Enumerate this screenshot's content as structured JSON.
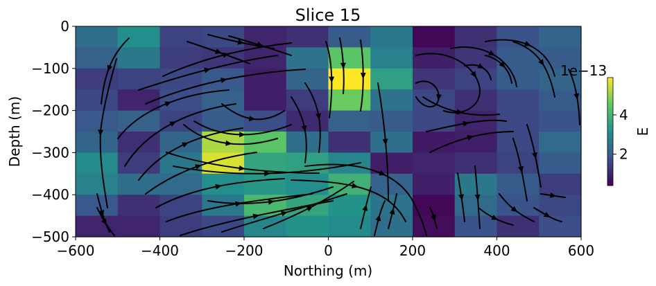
{
  "chart_data": {
    "type": "heatmap",
    "title": "Slice 15",
    "xlabel": "Northing (m)",
    "ylabel": "Depth (m)",
    "xlim": [
      -600,
      600
    ],
    "ylim": [
      -500,
      0
    ],
    "xticks": [
      -600,
      -400,
      -200,
      0,
      200,
      400,
      600
    ],
    "xtick_labels": [
      "−600",
      "−400",
      "−200",
      "0",
      "200",
      "400",
      "600"
    ],
    "yticks": [
      0,
      -100,
      -200,
      -300,
      -400,
      -500
    ],
    "ytick_labels": [
      "0",
      "−100",
      "−200",
      "−300",
      "−400",
      "−500"
    ],
    "x_edges": [
      -600,
      -500,
      -400,
      -300,
      -200,
      -100,
      0,
      100,
      200,
      300,
      400,
      500,
      600
    ],
    "y_edges": [
      0,
      -50,
      -100,
      -150,
      -200,
      -250,
      -300,
      -350,
      -400,
      -450,
      -500
    ],
    "values_e13": [
      [
        2.4,
        3.1,
        1.5,
        1.6,
        1.0,
        1.2,
        2.0,
        2.6,
        0.5,
        1.2,
        1.8,
        2.2
      ],
      [
        2.1,
        2.6,
        1.4,
        1.3,
        1.0,
        2.5,
        4.4,
        2.8,
        0.9,
        1.3,
        2.0,
        2.0
      ],
      [
        1.4,
        1.5,
        1.6,
        1.9,
        0.9,
        2.2,
        5.9,
        3.5,
        1.3,
        1.5,
        2.0,
        2.2
      ],
      [
        1.6,
        1.0,
        1.7,
        2.1,
        0.9,
        1.4,
        4.6,
        2.5,
        1.6,
        1.2,
        1.6,
        2.0
      ],
      [
        1.9,
        2.1,
        1.5,
        2.0,
        1.7,
        1.1,
        2.1,
        2.0,
        1.6,
        1.0,
        1.6,
        1.8
      ],
      [
        2.2,
        1.2,
        2.2,
        5.2,
        4.4,
        2.4,
        1.2,
        2.4,
        0.8,
        0.9,
        1.6,
        2.3
      ],
      [
        3.0,
        1.4,
        2.6,
        5.6,
        3.6,
        3.5,
        2.9,
        0.9,
        1.0,
        1.2,
        1.5,
        2.0
      ],
      [
        2.8,
        2.4,
        2.3,
        3.1,
        3.3,
        3.1,
        3.9,
        2.1,
        0.9,
        2.6,
        2.0,
        1.4
      ],
      [
        1.9,
        1.2,
        1.5,
        2.6,
        4.1,
        3.6,
        3.2,
        2.5,
        0.5,
        2.3,
        1.8,
        1.6
      ],
      [
        1.0,
        1.0,
        1.4,
        1.6,
        2.9,
        3.2,
        3.0,
        2.4,
        0.6,
        1.8,
        1.2,
        1.7
      ]
    ],
    "colormap": "viridis",
    "colorbar": {
      "label": "E",
      "offset_label": "1e−13",
      "range_e13": [
        0.4,
        5.9
      ],
      "ticks": [
        2,
        4
      ],
      "tick_labels": [
        "2",
        "4"
      ]
    },
    "streamlines": "black arrows"
  }
}
